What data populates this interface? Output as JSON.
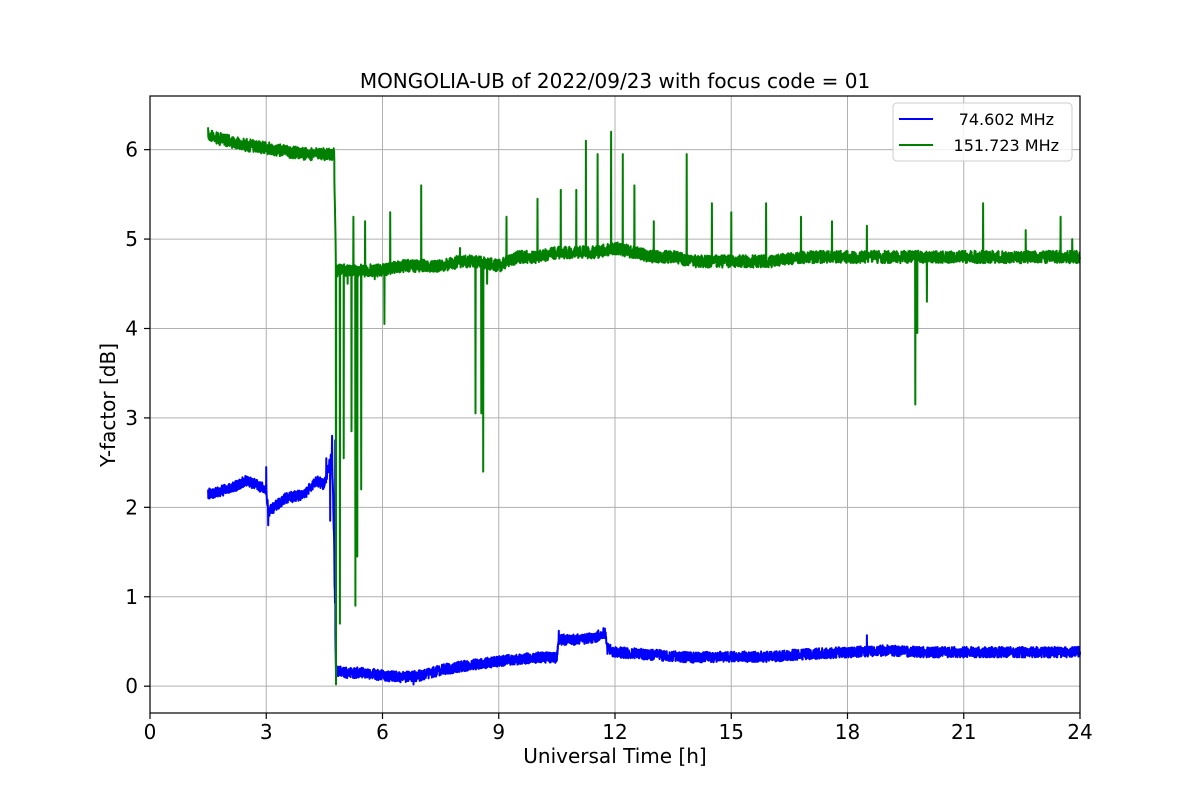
{
  "chart_data": {
    "type": "line",
    "title": "MONGOLIA-UB of 2022/09/23 with focus code = 01",
    "xlabel": "Universal Time [h]",
    "ylabel": "Y-factor [dB]",
    "xlim": [
      0,
      24
    ],
    "ylim": [
      -0.3,
      6.6
    ],
    "xticks": [
      0,
      3,
      6,
      9,
      12,
      15,
      18,
      21,
      24
    ],
    "xtick_labels": [
      "0",
      "3",
      "6",
      "9",
      "12",
      "15",
      "18",
      "21",
      "24"
    ],
    "yticks": [
      0,
      1,
      2,
      3,
      4,
      5,
      6
    ],
    "ytick_labels": [
      "0",
      "1",
      "2",
      "3",
      "4",
      "5",
      "6"
    ],
    "grid": true,
    "legend_position": "top-right",
    "series": [
      {
        "name": "74.602 MHz",
        "color": "#0000ff",
        "noise": 0.06,
        "x": [
          1.5,
          2.0,
          2.5,
          3.0,
          3.05,
          3.5,
          4.0,
          4.3,
          4.5,
          4.7,
          4.75,
          4.8,
          5.0,
          5.5,
          6.0,
          6.5,
          7.0,
          7.5,
          8.0,
          8.5,
          9.0,
          9.5,
          10.0,
          10.5,
          10.55,
          11.0,
          11.5,
          11.75,
          11.8,
          12.0,
          13.0,
          14.0,
          15.0,
          16.0,
          17.0,
          18.0,
          19.0,
          20.0,
          21.0,
          22.0,
          23.0,
          24.0
        ],
        "y": [
          2.15,
          2.2,
          2.3,
          2.2,
          1.95,
          2.1,
          2.15,
          2.3,
          2.25,
          2.6,
          1.6,
          0.18,
          0.15,
          0.15,
          0.12,
          0.1,
          0.12,
          0.18,
          0.22,
          0.25,
          0.28,
          0.3,
          0.32,
          0.32,
          0.52,
          0.52,
          0.55,
          0.6,
          0.42,
          0.38,
          0.35,
          0.32,
          0.33,
          0.33,
          0.36,
          0.38,
          0.4,
          0.38,
          0.38,
          0.38,
          0.38,
          0.38
        ],
        "spikes": [
          {
            "x": 3.0,
            "y": 2.45
          },
          {
            "x": 3.05,
            "y": 1.8
          },
          {
            "x": 4.55,
            "y": 2.55
          },
          {
            "x": 4.65,
            "y": 1.85
          },
          {
            "x": 4.7,
            "y": 2.8
          },
          {
            "x": 4.78,
            "y": 2.75
          },
          {
            "x": 10.55,
            "y": 0.62
          },
          {
            "x": 11.7,
            "y": 0.65
          },
          {
            "x": 18.5,
            "y": 0.57
          },
          {
            "x": 6.8,
            "y": 0.02
          }
        ]
      },
      {
        "name": "151.723 MHz",
        "color": "#008000",
        "noise": 0.07,
        "x": [
          1.5,
          2.0,
          2.5,
          3.0,
          3.5,
          4.0,
          4.5,
          4.75,
          4.8,
          5.0,
          5.5,
          6.0,
          6.5,
          7.0,
          7.5,
          8.0,
          8.5,
          9.0,
          9.5,
          10.0,
          10.5,
          11.0,
          11.5,
          12.0,
          12.5,
          13.0,
          13.5,
          14.0,
          14.5,
          15.0,
          15.5,
          16.0,
          17.0,
          18.0,
          19.0,
          20.0,
          21.0,
          22.0,
          23.0,
          24.0
        ],
        "y": [
          6.15,
          6.1,
          6.05,
          6.02,
          5.98,
          5.95,
          5.95,
          5.95,
          4.65,
          4.65,
          4.65,
          4.65,
          4.7,
          4.7,
          4.7,
          4.75,
          4.75,
          4.7,
          4.8,
          4.8,
          4.85,
          4.85,
          4.85,
          4.9,
          4.85,
          4.8,
          4.8,
          4.75,
          4.75,
          4.75,
          4.75,
          4.75,
          4.8,
          4.8,
          4.8,
          4.8,
          4.8,
          4.8,
          4.8,
          4.8
        ],
        "spikes": [
          {
            "x": 1.5,
            "y": 6.25
          },
          {
            "x": 4.8,
            "y": 0.02
          },
          {
            "x": 4.9,
            "y": 0.7
          },
          {
            "x": 5.0,
            "y": 2.55
          },
          {
            "x": 5.1,
            "y": 4.5
          },
          {
            "x": 5.2,
            "y": 2.85
          },
          {
            "x": 5.25,
            "y": 5.25
          },
          {
            "x": 5.3,
            "y": 0.9
          },
          {
            "x": 5.35,
            "y": 1.45
          },
          {
            "x": 5.45,
            "y": 2.2
          },
          {
            "x": 5.55,
            "y": 5.2
          },
          {
            "x": 5.8,
            "y": 4.55
          },
          {
            "x": 6.05,
            "y": 4.05
          },
          {
            "x": 6.2,
            "y": 5.3
          },
          {
            "x": 7.0,
            "y": 5.6
          },
          {
            "x": 8.0,
            "y": 4.9
          },
          {
            "x": 8.4,
            "y": 3.05
          },
          {
            "x": 8.55,
            "y": 3.05
          },
          {
            "x": 8.6,
            "y": 2.4
          },
          {
            "x": 8.7,
            "y": 4.5
          },
          {
            "x": 9.2,
            "y": 5.25
          },
          {
            "x": 10.0,
            "y": 5.45
          },
          {
            "x": 10.6,
            "y": 5.55
          },
          {
            "x": 11.0,
            "y": 5.55
          },
          {
            "x": 11.25,
            "y": 6.1
          },
          {
            "x": 11.55,
            "y": 5.95
          },
          {
            "x": 11.9,
            "y": 6.2
          },
          {
            "x": 12.2,
            "y": 5.95
          },
          {
            "x": 12.5,
            "y": 5.6
          },
          {
            "x": 13.0,
            "y": 5.2
          },
          {
            "x": 13.85,
            "y": 5.95
          },
          {
            "x": 14.5,
            "y": 5.4
          },
          {
            "x": 15.0,
            "y": 5.3
          },
          {
            "x": 15.9,
            "y": 5.4
          },
          {
            "x": 16.8,
            "y": 5.25
          },
          {
            "x": 17.6,
            "y": 5.2
          },
          {
            "x": 18.5,
            "y": 5.15
          },
          {
            "x": 19.75,
            "y": 3.15
          },
          {
            "x": 19.8,
            "y": 3.95
          },
          {
            "x": 20.05,
            "y": 4.3
          },
          {
            "x": 21.5,
            "y": 5.4
          },
          {
            "x": 22.6,
            "y": 5.1
          },
          {
            "x": 23.5,
            "y": 5.25
          },
          {
            "x": 23.8,
            "y": 5.0
          }
        ]
      }
    ]
  }
}
